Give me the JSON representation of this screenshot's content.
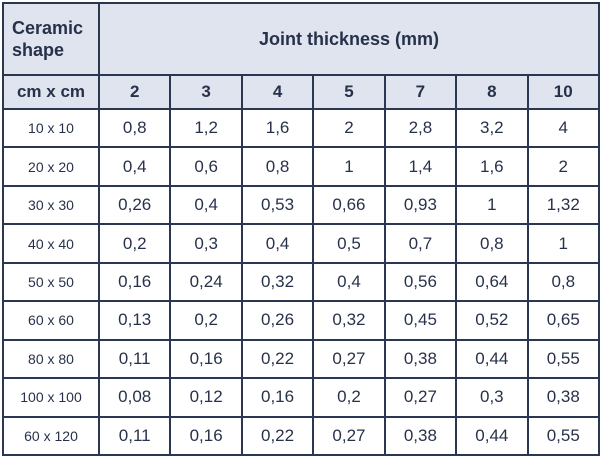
{
  "header": {
    "shape_label": [
      "Ceramic",
      "shape"
    ],
    "joint_label": "Joint thickness (mm)",
    "unit_label": "cm x cm",
    "thickness": [
      2,
      3,
      4,
      5,
      7,
      8,
      10
    ]
  },
  "table": {
    "rows": [
      [
        "10 x 10",
        "0,8",
        "1,2",
        "1,6",
        "2",
        "2,8",
        "3,2",
        "4"
      ],
      [
        "20 x 20",
        "0,4",
        "0,6",
        "0,8",
        "1",
        "1,4",
        "1,6",
        "2"
      ],
      [
        "30 x 30",
        "0,26",
        "0,4",
        "0,53",
        "0,66",
        "0,93",
        "1",
        "1,32"
      ],
      [
        "40 x 40",
        "0,2",
        "0,3",
        "0,4",
        "0,5",
        "0,7",
        "0,8",
        "1"
      ],
      [
        "50 x 50",
        "0,16",
        "0,24",
        "0,32",
        "0,4",
        "0,56",
        "0,64",
        "0,8"
      ],
      [
        "60 x 60",
        "0,13",
        "0,2",
        "0,26",
        "0,32",
        "0,45",
        "0,52",
        "0,65"
      ],
      [
        "80 x 80",
        "0,11",
        "0,16",
        "0,22",
        "0,27",
        "0,38",
        "0,44",
        "0,55"
      ],
      [
        "100 x 100",
        "0,08",
        "0,12",
        "0,16",
        "0,2",
        "0,27",
        "0,3",
        "0,38"
      ],
      [
        "60 x 120",
        "0,11",
        "0,16",
        "0,22",
        "0,27",
        "0,38",
        "0,44",
        "0,55"
      ]
    ]
  }
}
